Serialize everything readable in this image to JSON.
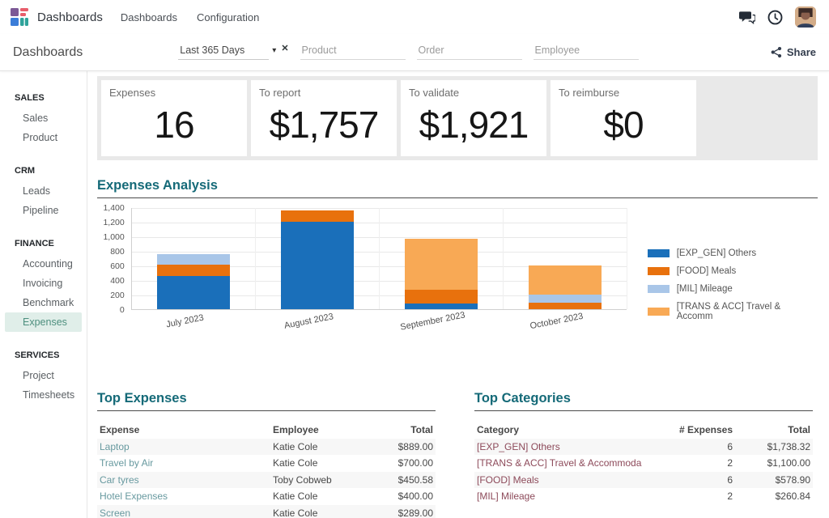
{
  "theme": {
    "accent": "#156a78",
    "expense_link_color": "#67999f",
    "category_link_color": "#8d4a5a",
    "kpi_strip_bg": "#e9e9e9",
    "sidebar_selected_bg": "#e0eee9",
    "sidebar_selected_color": "#4d8f7e"
  },
  "topbar": {
    "app_name": "Dashboards",
    "menu": [
      {
        "label": "Dashboards"
      },
      {
        "label": "Configuration"
      }
    ],
    "icons": {
      "messages": "chat-bubbles-icon",
      "activities": "clock-icon",
      "user": "user-avatar"
    }
  },
  "control_panel": {
    "title": "Dashboards",
    "date_filter": {
      "value": "Last 365 Days",
      "caret": "▾",
      "clear": "✕"
    },
    "search_filters": [
      {
        "placeholder": "Product"
      },
      {
        "placeholder": "Order"
      },
      {
        "placeholder": "Employee"
      }
    ],
    "share_label": "Share"
  },
  "sidebar": {
    "sections": [
      {
        "label": "SALES",
        "items": [
          {
            "label": "Sales"
          },
          {
            "label": "Product"
          }
        ]
      },
      {
        "label": "CRM",
        "items": [
          {
            "label": "Leads"
          },
          {
            "label": "Pipeline"
          }
        ]
      },
      {
        "label": "FINANCE",
        "items": [
          {
            "label": "Accounting"
          },
          {
            "label": "Invoicing"
          },
          {
            "label": "Benchmark"
          },
          {
            "label": "Expenses",
            "selected": true
          }
        ]
      },
      {
        "label": "SERVICES",
        "items": [
          {
            "label": "Project"
          },
          {
            "label": "Timesheets"
          }
        ]
      }
    ]
  },
  "kpis": [
    {
      "label": "Expenses",
      "value": "16"
    },
    {
      "label": "To report",
      "value": "$1,757"
    },
    {
      "label": "To validate",
      "value": "$1,921"
    },
    {
      "label": "To reimburse",
      "value": "$0"
    }
  ],
  "chart_data": {
    "type": "bar",
    "stacked": true,
    "title": "Expenses Analysis",
    "categories": [
      "July 2023",
      "August 2023",
      "September 2023",
      "October 2023"
    ],
    "series": [
      {
        "name": "[EXP_GEN] Others",
        "color": "#1a6fba",
        "values": [
          455,
          1205,
          78,
          0
        ]
      },
      {
        "name": "[FOOD] Meals",
        "color": "#e8710d",
        "values": [
          155,
          150,
          190,
          84
        ]
      },
      {
        "name": "[MIL] Mileage",
        "color": "#a9c6e8",
        "values": [
          146,
          0,
          0,
          115
        ]
      },
      {
        "name": "[TRANS & ACC] Travel & Accomm",
        "color": "#f8a955",
        "values": [
          0,
          0,
          700,
          400
        ]
      }
    ],
    "ylim": [
      0,
      1400
    ],
    "ytick_step": 200,
    "ytick_labels": [
      "0",
      "200",
      "400",
      "600",
      "800",
      "1,000",
      "1,200",
      "1,400"
    ],
    "grid": true,
    "legend_position": "right"
  },
  "tables": [
    {
      "title": "Top Expenses",
      "columns": [
        "Expense",
        "Employee",
        "Total"
      ],
      "align": [
        "left",
        "left",
        "right"
      ],
      "rows": [
        [
          "Laptop",
          "Katie Cole",
          "$889.00"
        ],
        [
          "Travel by Air",
          "Katie Cole",
          "$700.00"
        ],
        [
          "Car tyres",
          "Toby Cobweb",
          "$450.58"
        ],
        [
          "Hotel Expenses",
          "Katie Cole",
          "$400.00"
        ],
        [
          "Screen",
          "Katie Cole",
          "$289.00"
        ]
      ]
    },
    {
      "title": "Top Categories",
      "columns": [
        "Category",
        "# Expenses",
        "Total"
      ],
      "align": [
        "left",
        "right",
        "right"
      ],
      "rows": [
        [
          "[EXP_GEN] Others",
          "6",
          "$1,738.32"
        ],
        [
          "[TRANS & ACC] Travel & Accommoda",
          "2",
          "$1,100.00"
        ],
        [
          "[FOOD] Meals",
          "6",
          "$578.90"
        ],
        [
          "[MIL] Mileage",
          "2",
          "$260.84"
        ]
      ]
    }
  ]
}
